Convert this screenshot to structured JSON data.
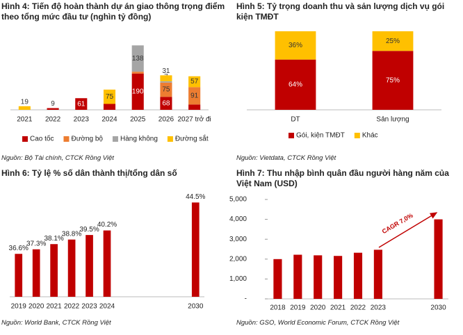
{
  "chart_data": [
    {
      "type": "bar",
      "stacked": true,
      "title": "Hình 4: Tiến độ hoàn thành dự án giao thông trọng điểm theo tổng mức đầu tư (nghìn tỷ đồng)",
      "categories": [
        "2021",
        "2022",
        "2023",
        "2024",
        "2025",
        "2026",
        "2027 trở đi"
      ],
      "series": [
        {
          "name": "Cao tốc",
          "color": "#c00000",
          "values": [
            null,
            9,
            61,
            31,
            190,
            68,
            28
          ]
        },
        {
          "name": "Đường bộ",
          "color": "#ed7d31",
          "values": [
            null,
            null,
            null,
            null,
            10,
            75,
            91
          ]
        },
        {
          "name": "Hàng không",
          "color": "#a5a5a5",
          "values": [
            null,
            null,
            null,
            null,
            138,
            7,
            null
          ]
        },
        {
          "name": "Đường sắt",
          "color": "#ffc000",
          "values": [
            19,
            null,
            null,
            75,
            null,
            31,
            57
          ]
        }
      ],
      "ylim": [
        0,
        350
      ],
      "legend": "bottom",
      "source": "Nguồn: Bộ Tài chính, CTCK Rồng Việt"
    },
    {
      "type": "bar",
      "stacked": true,
      "title": "Hình 5: Tỷ trọng doanh thu và sản lượng dịch vụ gói kiện TMĐT",
      "categories": [
        "DT",
        "Sản lượng"
      ],
      "series": [
        {
          "name": "Gói, kiện TMĐT",
          "color": "#c00000",
          "values": [
            64,
            75
          ],
          "value_labels": [
            "64%",
            "75%"
          ]
        },
        {
          "name": "Khác",
          "color": "#ffc000",
          "values": [
            36,
            25
          ],
          "value_labels": [
            "36%",
            "25%"
          ]
        }
      ],
      "ylim": [
        0,
        100
      ],
      "legend": "bottom",
      "source": "Nguồn: Vietdata, CTCK Rồng Việt"
    },
    {
      "type": "bar",
      "title": "Hình 6: Tỷ lệ % số dân thành thị/tổng dân số",
      "categories": [
        "2019",
        "2020",
        "2021",
        "2022",
        "2023",
        "2024",
        null,
        null,
        null,
        null,
        "2030"
      ],
      "values": [
        36.6,
        37.3,
        38.1,
        38.8,
        39.5,
        40.2,
        null,
        null,
        null,
        null,
        44.5
      ],
      "value_labels": [
        "36.6%",
        "37.3%",
        "38.1%",
        "38.8%",
        "39.5%",
        "40.2%",
        null,
        null,
        null,
        null,
        "44.5%"
      ],
      "color": "#c00000",
      "ylim": [
        30,
        45.5
      ],
      "source": "Nguồn: World Bank, CTCK Rồng Việt"
    },
    {
      "type": "bar",
      "title": "Hình 7: Thu nhập bình quân đầu người hàng năm của Việt Nam (USD)",
      "categories": [
        "2018",
        "2019",
        "2020",
        "2021",
        "2022",
        "2023",
        null,
        null,
        "2030"
      ],
      "values": [
        2000,
        2220,
        2190,
        2160,
        2320,
        2470,
        null,
        null,
        4000
      ],
      "color": "#c00000",
      "ylim": [
        0,
        5000
      ],
      "yticks": [
        {
          "value": 0,
          "label": "-"
        },
        {
          "value": 1000,
          "label": "1,000"
        },
        {
          "value": 2000,
          "label": "2,000"
        },
        {
          "value": 3000,
          "label": "3,000"
        },
        {
          "value": 4000,
          "label": "4,000"
        },
        {
          "value": 5000,
          "label": "5,000"
        }
      ],
      "annotation": "CAGR 7,0%",
      "source": "Nguồn: GSO, World Economic Forum, CTCK Rồng Việt"
    }
  ]
}
